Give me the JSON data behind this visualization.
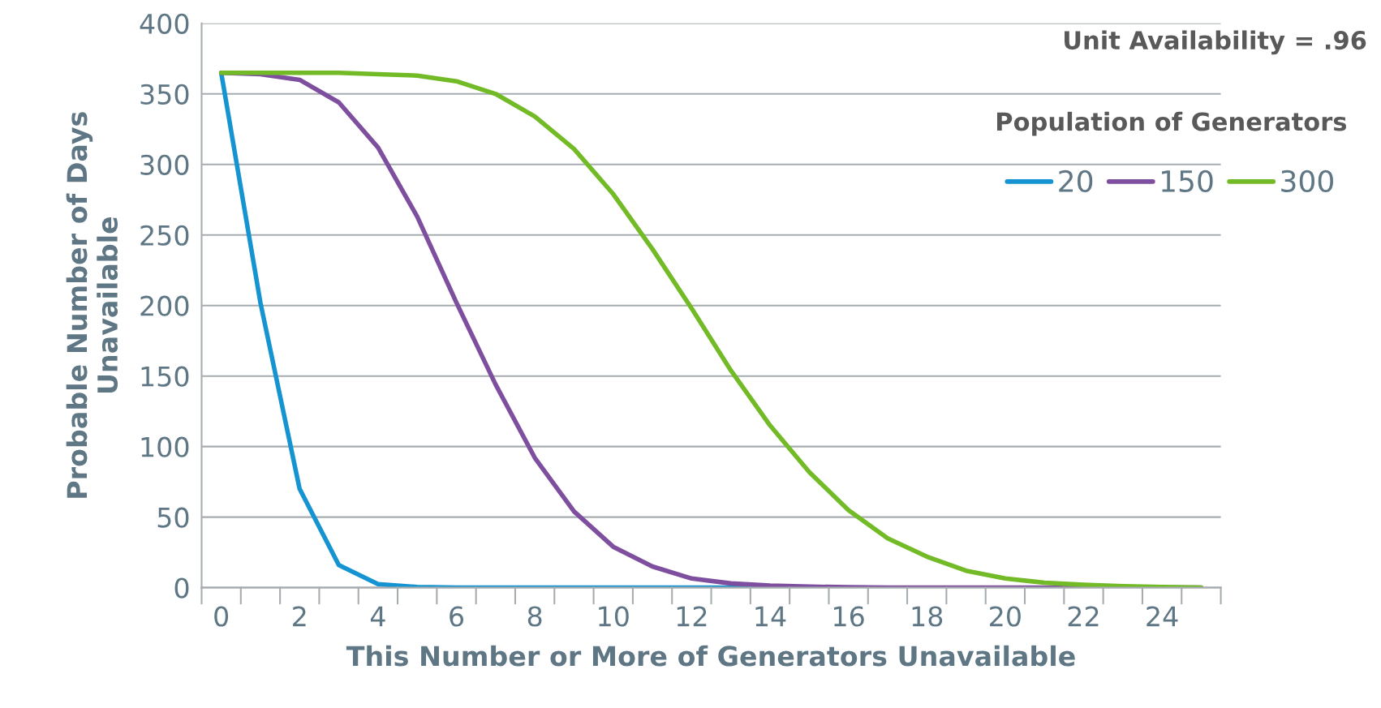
{
  "chart_data": {
    "type": "line",
    "title": "Unit Availability = .96",
    "legend_title": "Population of Generators",
    "xlabel": "This Number or More of Generators Unavailable",
    "ylabel": "Probable Number of Days\nUnavailable",
    "categories": [
      "0",
      null,
      "2",
      null,
      "4",
      null,
      "6",
      null,
      "8",
      null,
      "10",
      null,
      "12",
      null,
      "14",
      null,
      "16",
      null,
      "18",
      null,
      "20",
      null,
      "22",
      null,
      "24",
      null
    ],
    "series": [
      {
        "name": "20",
        "color": "#1594d1",
        "values": [
          365,
          202,
          70,
          16,
          2.5,
          0.5,
          0,
          0,
          0,
          0,
          0,
          0,
          0,
          0,
          0,
          null,
          null,
          null,
          null,
          null,
          null,
          null,
          null,
          null,
          null,
          null
        ]
      },
      {
        "name": "150",
        "color": "#7f4f9f",
        "values": [
          365,
          364,
          360,
          344,
          312,
          263,
          202,
          144,
          92,
          54,
          29,
          15,
          6.5,
          3,
          1.5,
          0.7,
          0.3,
          0,
          0,
          0,
          0,
          0,
          0,
          0,
          0,
          0
        ]
      },
      {
        "name": "300",
        "color": "#72bb26",
        "values": [
          365,
          365,
          365,
          365,
          364,
          363,
          359,
          350,
          334,
          311,
          279,
          240,
          198,
          154,
          115,
          82,
          55,
          35,
          22,
          12,
          6.5,
          3.5,
          2,
          1,
          0.5,
          0
        ]
      }
    ],
    "ylim": [
      0,
      400
    ],
    "yticks": [
      0,
      50,
      100,
      150,
      200,
      250,
      300,
      350,
      400
    ],
    "grid": "y",
    "legend": "top right",
    "line_style": "solid",
    "marker": "none"
  }
}
